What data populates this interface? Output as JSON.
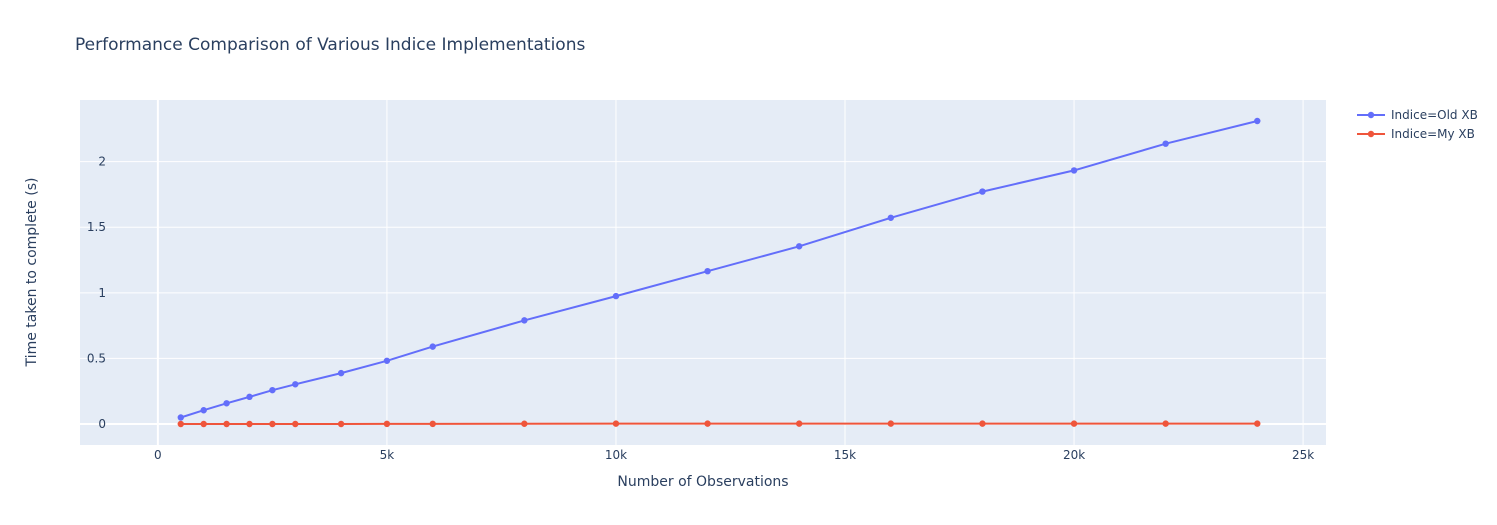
{
  "chart_data": {
    "type": "line",
    "title": "Performance Comparison of Various Indice Implementations",
    "xlabel": "Number of Observations",
    "ylabel": "Time taken to complete (s)",
    "xlim": [
      -1700,
      25500
    ],
    "ylim": [
      -0.16,
      2.47
    ],
    "x_ticks": [
      0,
      5000,
      10000,
      15000,
      20000,
      25000
    ],
    "x_tick_labels": [
      "0",
      "5k",
      "10k",
      "15k",
      "20k",
      "25k"
    ],
    "y_ticks": [
      0,
      0.5,
      1,
      1.5,
      2
    ],
    "y_tick_labels": [
      "0",
      "0.5",
      "1",
      "1.5",
      "2"
    ],
    "grid": true,
    "legend_position": "top-right",
    "x": [
      500,
      1000,
      1500,
      2000,
      2500,
      3000,
      4000,
      5000,
      6000,
      8000,
      10000,
      12000,
      14000,
      16000,
      18000,
      20000,
      22000,
      24000
    ],
    "series": [
      {
        "name": "Indice=Old XB",
        "color": "#636efa",
        "values": [
          0.05,
          0.105,
          0.158,
          0.207,
          0.258,
          0.303,
          0.388,
          0.482,
          0.59,
          0.79,
          0.975,
          1.165,
          1.355,
          1.572,
          1.772,
          1.933,
          2.137,
          2.31
        ]
      },
      {
        "name": "Indice=My XB",
        "color": "#ef553b",
        "values": [
          0.0,
          0.0,
          0.0,
          0.0,
          0.0,
          0.0,
          0.0,
          0.001,
          0.001,
          0.002,
          0.003,
          0.003,
          0.003,
          0.003,
          0.003,
          0.003,
          0.003,
          0.003
        ]
      }
    ]
  },
  "style": {
    "plot_bg": "#e5ecf6",
    "grid_color": "#ffffff",
    "text_color": "#2a3f5f"
  }
}
